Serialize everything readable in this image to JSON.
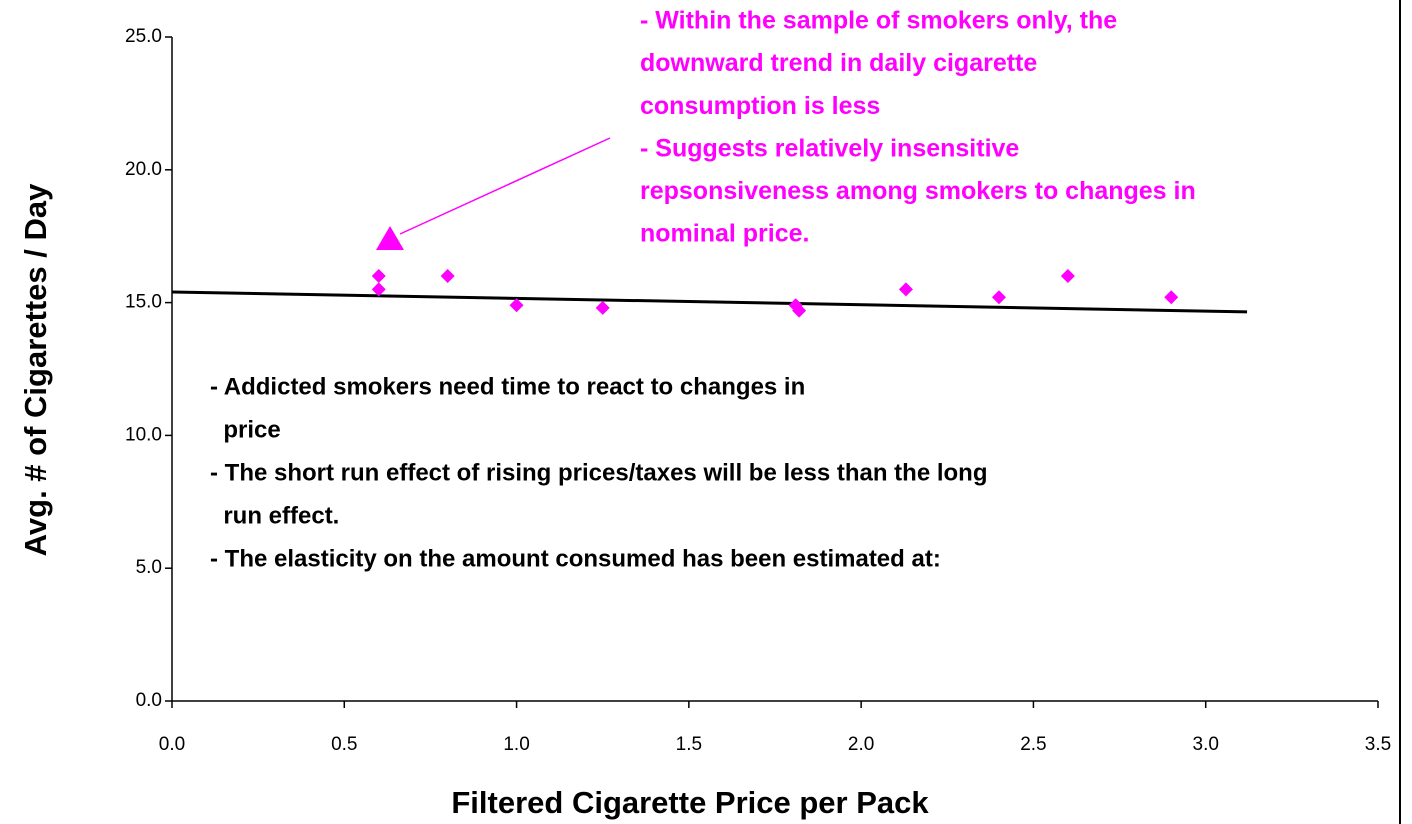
{
  "chart_data": {
    "type": "scatter",
    "x_label": "Filtered Cigarette Price per Pack",
    "y_label": "Avg. # of Cigarettes / Day",
    "series": [
      {
        "color": "#ff00ff",
        "x": [
          0.6,
          0.6,
          0.8,
          1.0,
          1.25,
          1.81,
          1.82,
          2.13,
          2.4,
          2.6,
          2.9
        ],
        "values": [
          16.0,
          15.5,
          16.0,
          14.9,
          14.8,
          14.9,
          14.7,
          15.5,
          15.2,
          16.0,
          15.2
        ]
      }
    ],
    "trendline": {
      "color": "#000000",
      "x": [
        0,
        3.12
      ],
      "values": [
        15.4,
        14.65
      ]
    },
    "xlim": [
      0,
      3.5
    ],
    "xticks": [
      {
        "value": 0,
        "label": "0.0"
      },
      {
        "value": 0.5,
        "label": "0.5"
      },
      {
        "value": 1,
        "label": "1.0"
      },
      {
        "value": 1.5,
        "label": "1.5"
      },
      {
        "value": 2,
        "label": "2.0"
      },
      {
        "value": 2.5,
        "label": "2.5"
      },
      {
        "value": 3,
        "label": "3.0"
      },
      {
        "value": 3.5,
        "label": "3.5"
      }
    ],
    "ylim": [
      0,
      25
    ],
    "yticks": [
      {
        "value": 0,
        "label": "0.0"
      },
      {
        "value": 5,
        "label": "5.0"
      },
      {
        "value": 10,
        "label": "10.0"
      },
      {
        "value": 15,
        "label": "15.0"
      },
      {
        "value": 20,
        "label": "20.0"
      },
      {
        "value": 25,
        "label": "25.0"
      }
    ],
    "annotations": {
      "smokers_note": [
        "- Within the sample of smokers only, the",
        "downward trend in daily cigarette",
        "consumption is less",
        "- Suggests relatively insensitive",
        "repsonsiveness among smokers to changes in",
        "nominal price."
      ],
      "addiction_note": [
        "- Addicted smokers need time to react to changes in",
        "  price",
        "- The short run effect of rising prices/taxes will be less than the long",
        "  run effect.",
        "- The elasticity on the amount consumed has been estimated at:"
      ]
    }
  }
}
